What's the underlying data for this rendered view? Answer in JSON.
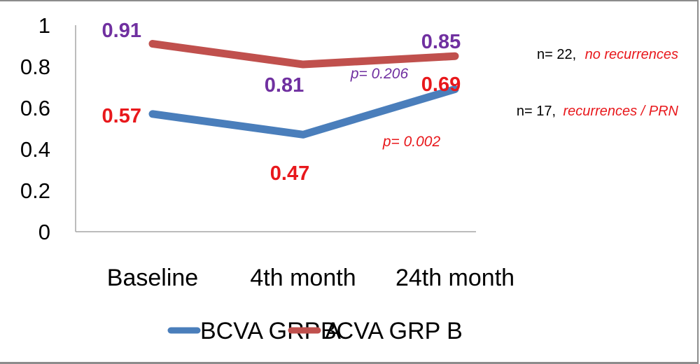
{
  "chart_data": {
    "type": "line",
    "title": "",
    "xlabel": "",
    "ylabel": "",
    "ylim": [
      0,
      1
    ],
    "yticks": [
      "0",
      "0.2",
      "0.4",
      "0.6",
      "0.8",
      "1"
    ],
    "ytick_values": [
      0,
      0.2,
      0.4,
      0.6,
      0.8,
      1
    ],
    "categories": [
      "Baseline",
      "4th month",
      "24th month"
    ],
    "grid": false,
    "legend_position": "bottom",
    "series": [
      {
        "name": "BCVA GRP A",
        "color": "#4a7ebb",
        "label_color": "#e8181c",
        "values": [
          0.57,
          0.47,
          0.69
        ],
        "labels": [
          "0.57",
          "0.47",
          "0.69"
        ],
        "n_note": "n= 17,",
        "group_note": "recurrences / PRN",
        "p_value": "p= 0.002"
      },
      {
        "name": "BCVA GRP B",
        "color": "#c0504d",
        "label_color": "#7030a0",
        "values": [
          0.91,
          0.81,
          0.85
        ],
        "labels": [
          "0.91",
          "0.81",
          "0.85"
        ],
        "n_note": "n= 22,",
        "group_note": "no recurrences",
        "p_value": "p= 0.206"
      }
    ]
  }
}
